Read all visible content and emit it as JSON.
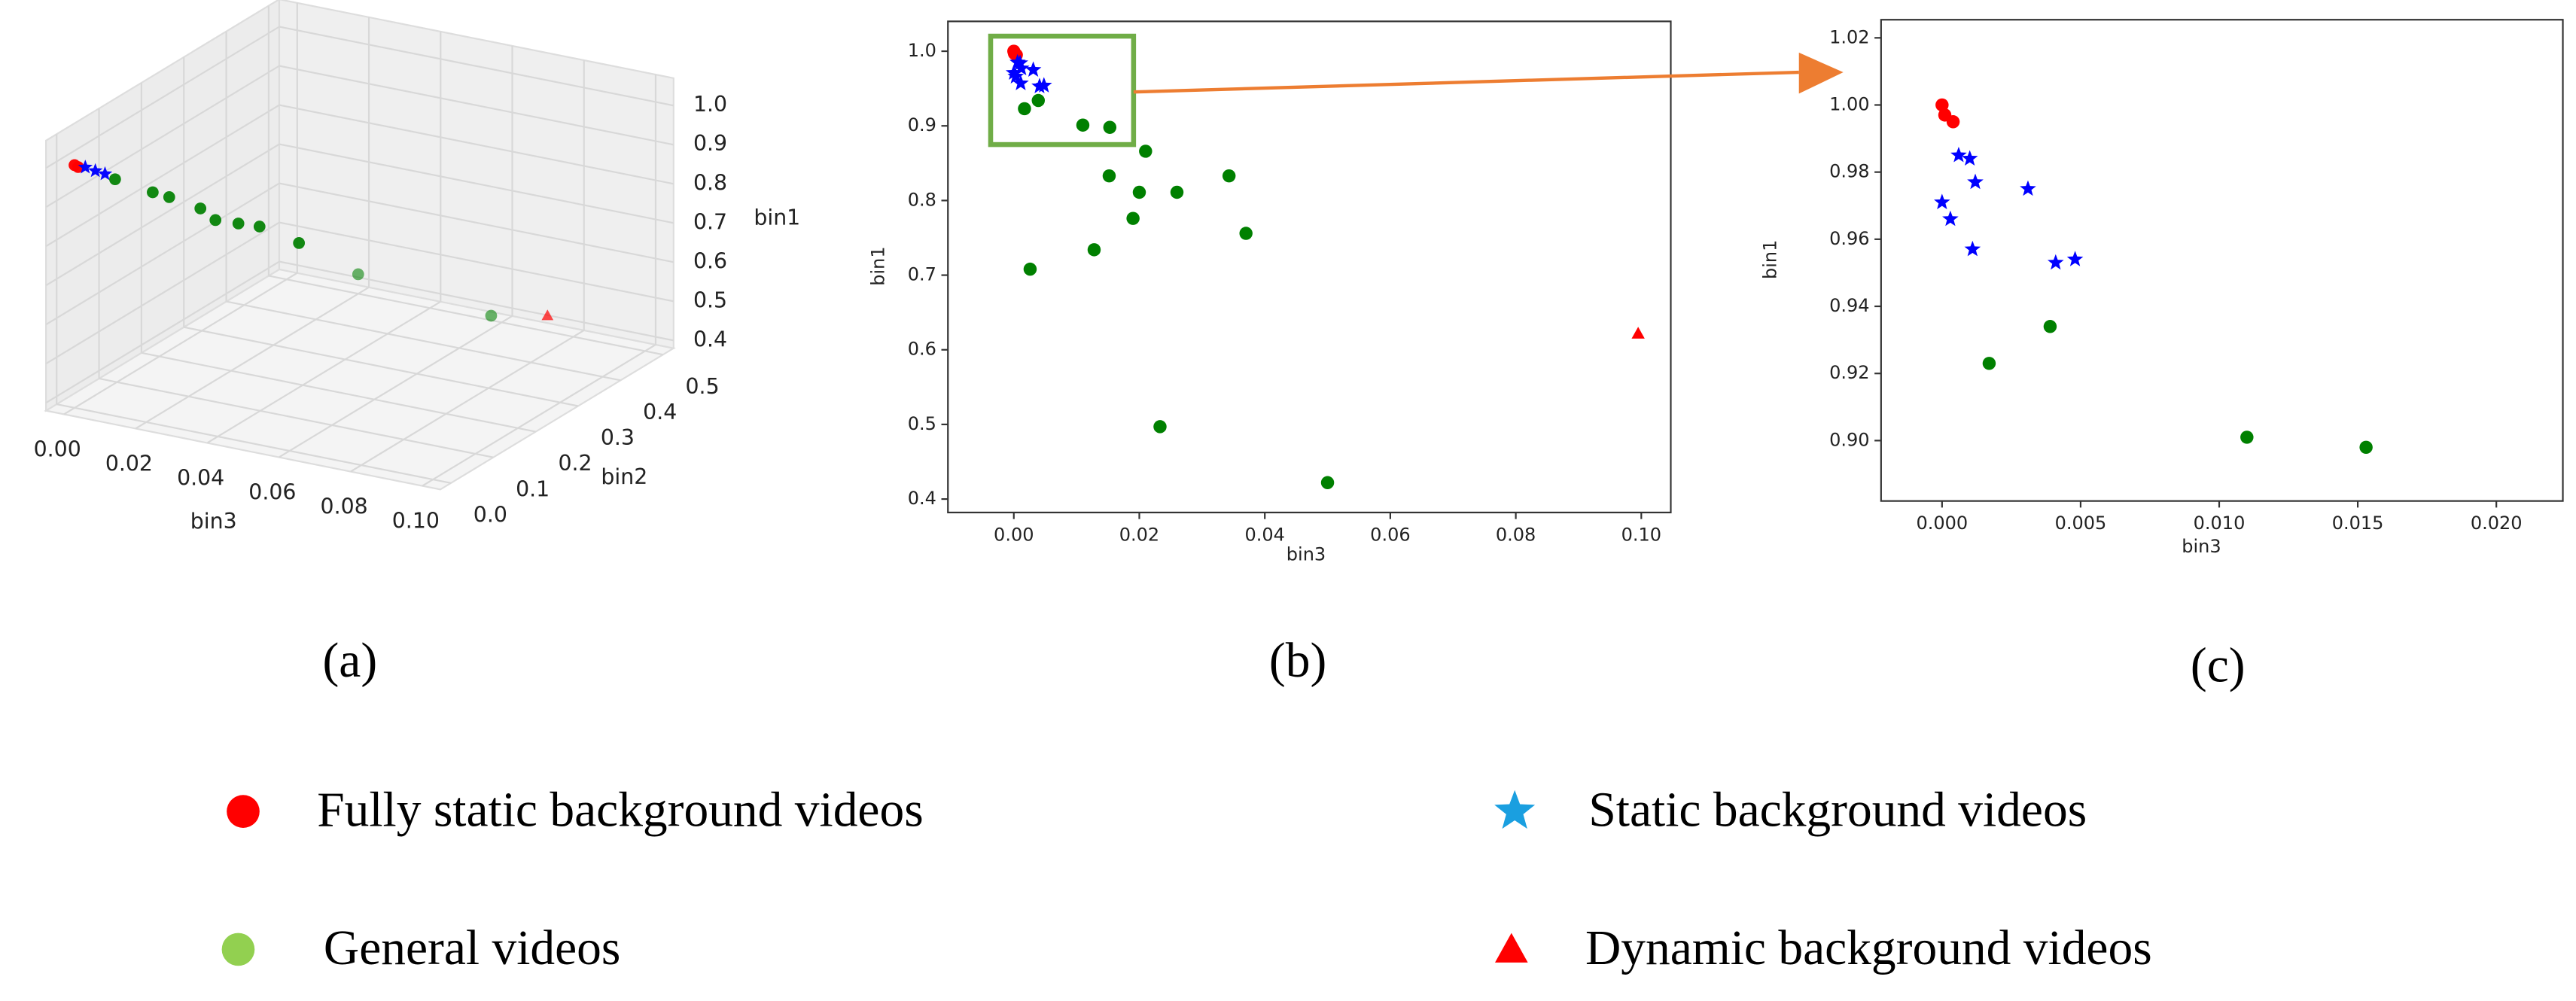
{
  "chart_data": [
    {
      "type": "scatter3d",
      "label": "(a)",
      "xlabel": "bin3",
      "ylabel": "bin2",
      "zlabel": "bin1",
      "xlim": [
        -0.005,
        0.105
      ],
      "ylim": [
        -0.025,
        0.525
      ],
      "zlim": [
        0.38,
        1.07
      ],
      "xticks": [
        {
          "value": 0,
          "label": "0.00"
        },
        0.02,
        0.04,
        0.06,
        0.08,
        {
          "value": 0.1,
          "label": "0.10"
        }
      ],
      "yticks": [
        {
          "value": 0,
          "label": "0.0"
        },
        0.1,
        0.2,
        0.3,
        0.4,
        0.5
      ],
      "zticks": [
        0.4,
        0.5,
        0.6,
        0.7,
        0.8,
        0.9,
        {
          "value": 1,
          "label": "1.0"
        }
      ],
      "series": [
        {
          "color": "#ff0000",
          "marker": "circle",
          "x": [
            0,
            0.001
          ],
          "y": [
            0,
            0
          ],
          "z": [
            1.0,
            0.997
          ]
        },
        {
          "color": "#0000ff",
          "marker": "star",
          "x": [
            0.003,
            0.0058,
            0.0085
          ],
          "y": [
            0,
            0,
            0
          ],
          "z": [
            1.0,
            0.996,
            0.993
          ]
        },
        {
          "color": "#008000",
          "marker": "circle",
          "x": [
            0.0054,
            0.0159,
            0.0205,
            0.0292,
            0.0334,
            0.0398,
            0.0457,
            0.0567,
            0.0318,
            0.0689
          ],
          "y": [
            0.05,
            0.05,
            0.05,
            0.05,
            0.05,
            0.05,
            0.05,
            0.05,
            0.4,
            0.4
          ],
          "z": [
            0.941,
            0.927,
            0.923,
            0.91,
            0.888,
            0.891,
            0.894,
            0.872,
            0.517,
            0.479
          ]
        },
        {
          "color": "#ff0000",
          "marker": "triangle",
          "x": [
            0.1
          ],
          "y": [
            0.27
          ],
          "z": [
            0.622
          ]
        }
      ]
    },
    {
      "type": "scatter",
      "label": "(b)",
      "xlabel": "bin3",
      "ylabel": "bin1",
      "xlim": [
        -0.0105,
        0.1047
      ],
      "ylim": [
        0.382,
        1.04
      ],
      "xticks": [
        {
          "value": 0,
          "label": "0.00"
        },
        0.02,
        0.04,
        0.06,
        0.08,
        {
          "value": 0.1,
          "label": "0.10"
        }
      ],
      "yticks": [
        0.4,
        0.5,
        0.6,
        0.7,
        0.8,
        0.9,
        {
          "value": 1,
          "label": "1.0"
        }
      ],
      "series": [
        {
          "name": "Fully static background videos",
          "color": "#ff0000",
          "legend_color": "#ff0000",
          "marker": "circle",
          "x": [
            0,
            0.0001,
            0.0004
          ],
          "values": [
            1.0,
            0.997,
            0.995
          ]
        },
        {
          "name": "Static background videos",
          "color": "#0000ff",
          "legend_color": "#1a9fe0",
          "marker": "star",
          "x": [
            0.0006,
            0.001,
            0.0012,
            0,
            0.0003,
            0.0011,
            0.0031,
            0.0041,
            0.0048
          ],
          "values": [
            0.985,
            0.984,
            0.977,
            0.971,
            0.966,
            0.957,
            0.975,
            0.953,
            0.954
          ]
        },
        {
          "name": "General videos",
          "color": "#008000",
          "legend_color": "#92d050",
          "marker": "circle",
          "x": [
            0.0017,
            0.0039,
            0.011,
            0.0153,
            0.021,
            0.0152,
            0.02,
            0.019,
            0.026,
            0.0343,
            0.037,
            0.0128,
            0.0026,
            0.0233,
            0.05
          ],
          "values": [
            0.923,
            0.934,
            0.901,
            0.898,
            0.866,
            0.833,
            0.811,
            0.776,
            0.811,
            0.833,
            0.756,
            0.734,
            0.708,
            0.497,
            0.422
          ]
        },
        {
          "name": "Dynamic background videos",
          "color": "#ff0000",
          "legend_color": "#ff0000",
          "marker": "triangle",
          "x": [
            0.0995
          ],
          "values": [
            0.622
          ]
        }
      ]
    },
    {
      "type": "scatter",
      "label": "(c)",
      "xlabel": "bin3",
      "ylabel": "bin1",
      "xlim": [
        -0.0022,
        0.0224
      ],
      "ylim": [
        0.882,
        1.0254
      ],
      "xticks": [
        {
          "value": 0,
          "label": "0.000"
        },
        {
          "value": 0.005,
          "label": "0.005"
        },
        {
          "value": 0.01,
          "label": "0.010"
        },
        {
          "value": 0.015,
          "label": "0.015"
        },
        {
          "value": 0.02,
          "label": "0.020"
        }
      ],
      "yticks": [
        {
          "value": 0.9,
          "label": "0.90"
        },
        0.92,
        0.94,
        0.96,
        0.98,
        {
          "value": 1,
          "label": "1.00"
        },
        1.02
      ],
      "series": [
        {
          "color": "#ff0000",
          "marker": "circle",
          "x": [
            0,
            0.0001,
            0.0004
          ],
          "values": [
            1.0,
            0.997,
            0.995
          ]
        },
        {
          "color": "#0000ff",
          "marker": "star",
          "x": [
            0.0006,
            0.001,
            0.0012,
            0,
            0.0003,
            0.0011,
            0.0031,
            0.0041,
            0.0048
          ],
          "values": [
            0.985,
            0.984,
            0.977,
            0.971,
            0.966,
            0.957,
            0.975,
            0.953,
            0.954
          ]
        },
        {
          "color": "#008000",
          "marker": "circle",
          "x": [
            0.0017,
            0.0039,
            0.011,
            0.0153
          ],
          "values": [
            0.923,
            0.934,
            0.901,
            0.898
          ]
        }
      ]
    }
  ]
}
